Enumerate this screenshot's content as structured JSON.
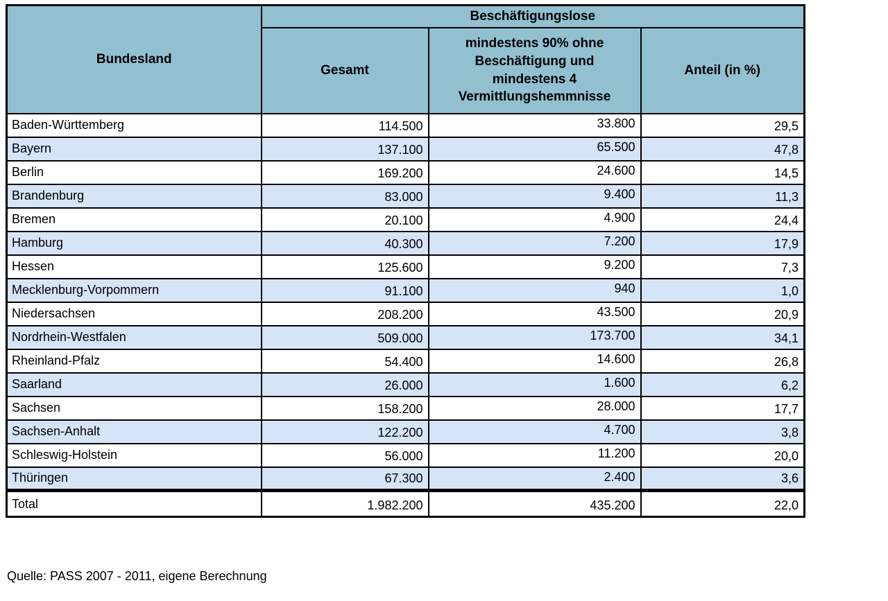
{
  "table": {
    "header": {
      "col_bundesland": "Bundesland",
      "group_label": "Beschäftigungslose",
      "col_gesamt": "Gesamt",
      "col_min90": "mindestens 90% ohne Beschäftigung und mindestens 4 Vermittlungshemmnisse",
      "col_anteil": "Anteil (in %)"
    },
    "rows": [
      {
        "bundesland": "Baden-Württemberg",
        "gesamt": "114.500",
        "min90": "33.800",
        "anteil": "29,5"
      },
      {
        "bundesland": "Bayern",
        "gesamt": "137.100",
        "min90": "65.500",
        "anteil": "47,8"
      },
      {
        "bundesland": "Berlin",
        "gesamt": "169.200",
        "min90": "24.600",
        "anteil": "14,5"
      },
      {
        "bundesland": "Brandenburg",
        "gesamt": "83.000",
        "min90": "9.400",
        "anteil": "11,3"
      },
      {
        "bundesland": "Bremen",
        "gesamt": "20.100",
        "min90": "4.900",
        "anteil": "24,4"
      },
      {
        "bundesland": "Hamburg",
        "gesamt": "40.300",
        "min90": "7.200",
        "anteil": "17,9"
      },
      {
        "bundesland": "Hessen",
        "gesamt": "125.600",
        "min90": "9.200",
        "anteil": "7,3"
      },
      {
        "bundesland": "Mecklenburg-Vorpommern",
        "gesamt": "91.100",
        "min90": "940",
        "anteil": "1,0"
      },
      {
        "bundesland": "Niedersachsen",
        "gesamt": "208.200",
        "min90": "43.500",
        "anteil": "20,9"
      },
      {
        "bundesland": "Nordrhein-Westfalen",
        "gesamt": "509.000",
        "min90": "173.700",
        "anteil": "34,1"
      },
      {
        "bundesland": "Rheinland-Pfalz",
        "gesamt": "54.400",
        "min90": "14.600",
        "anteil": "26,8"
      },
      {
        "bundesland": "Saarland",
        "gesamt": "26.000",
        "min90": "1.600",
        "anteil": "6,2"
      },
      {
        "bundesland": "Sachsen",
        "gesamt": "158.200",
        "min90": "28.000",
        "anteil": "17,7"
      },
      {
        "bundesland": "Sachsen-Anhalt",
        "gesamt": "122.200",
        "min90": "4.700",
        "anteil": "3,8"
      },
      {
        "bundesland": "Schleswig-Holstein",
        "gesamt": "56.000",
        "min90": "11.200",
        "anteil": "20,0"
      },
      {
        "bundesland": "Thüringen",
        "gesamt": "67.300",
        "min90": "2.400",
        "anteil": "3,6"
      }
    ],
    "total": {
      "bundesland": "Total",
      "gesamt": "1.982.200",
      "min90": "435.200",
      "anteil": "22,0"
    }
  },
  "source": "Quelle: PASS 2007 - 2011, eigene Berechnung",
  "colors": {
    "header_bg": "#92C0D0",
    "alt_row_bg": "#D6E4F8",
    "border": "#000000"
  }
}
